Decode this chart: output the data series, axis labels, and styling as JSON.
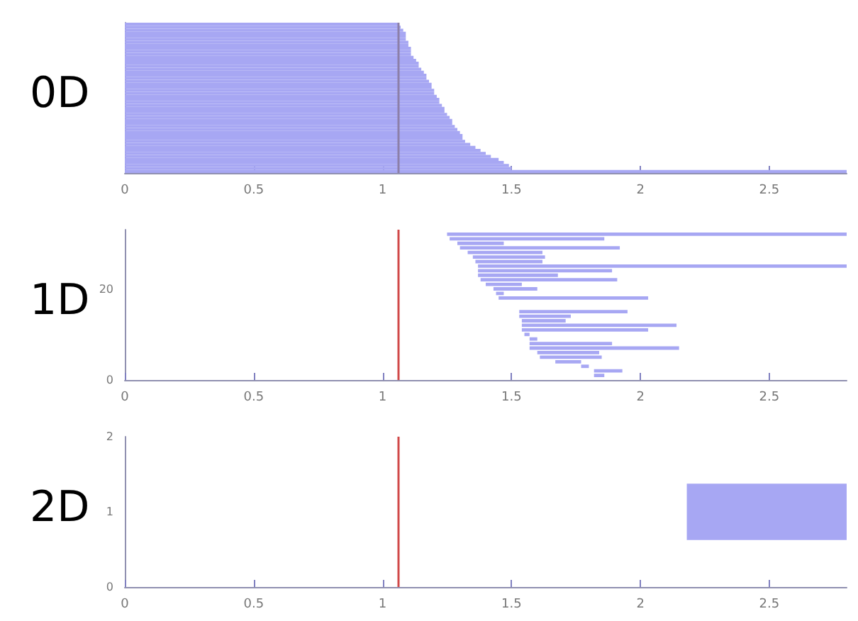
{
  "chart_data": [
    {
      "type": "bar",
      "title": "0D",
      "orientation": "horizontal",
      "tick_labels": "x",
      "grid": false,
      "xlim": [
        0,
        2.8
      ],
      "xticks": [
        0,
        0.5,
        1,
        1.5,
        2,
        2.5
      ],
      "categories": [
        null,
        null,
        null,
        null,
        null,
        null,
        null,
        null,
        null,
        null,
        null,
        null,
        null,
        null,
        null,
        null,
        null,
        null,
        null,
        null,
        null,
        null,
        null,
        null,
        null,
        null,
        null,
        null,
        null,
        null,
        null,
        null,
        null,
        null,
        null,
        null,
        null,
        null,
        null,
        null,
        null,
        null,
        null,
        null,
        null,
        null,
        null,
        null,
        null,
        null
      ],
      "series": [
        {
          "color": "#a7a7f3",
          "values": [
            1.06,
            1.07,
            1.08,
            1.09,
            1.09,
            1.09,
            1.1,
            1.1,
            1.11,
            1.11,
            1.11,
            1.12,
            1.13,
            1.14,
            1.14,
            1.15,
            1.16,
            1.17,
            1.17,
            1.18,
            1.19,
            1.19,
            1.2,
            1.2,
            1.21,
            1.22,
            1.22,
            1.23,
            1.24,
            1.24,
            1.25,
            1.26,
            1.27,
            1.27,
            1.28,
            1.29,
            1.3,
            1.31,
            1.31,
            1.32,
            1.34,
            1.36,
            1.38,
            1.4,
            1.42,
            1.45,
            1.47,
            1.49,
            1.5,
            2.8
          ]
        }
      ],
      "ref_lines": [
        {
          "axis": "x",
          "value": 1.06,
          "color": "#8c7fa8"
        }
      ]
    },
    {
      "type": "bar",
      "title": "1D",
      "orientation": "horizontal",
      "grid": false,
      "xlim": [
        0,
        2.8
      ],
      "xticks": [
        0,
        0.5,
        1,
        1.5,
        2,
        2.5
      ],
      "categories": [
        null,
        null,
        null,
        null,
        null,
        null,
        null,
        null,
        null,
        null,
        null,
        null,
        null,
        "20",
        null,
        null,
        null,
        null,
        null,
        null,
        null,
        null,
        null,
        null,
        null,
        null,
        null,
        null,
        null,
        null,
        null,
        null,
        null,
        "0"
      ],
      "series": [
        {
          "color": "#a7a7f3",
          "base": [
            null,
            1.25,
            1.26,
            1.29,
            1.3,
            1.33,
            1.35,
            1.36,
            1.37,
            1.37,
            1.37,
            1.38,
            1.4,
            1.43,
            1.44,
            1.45,
            null,
            null,
            1.53,
            1.53,
            1.54,
            1.54,
            1.54,
            1.55,
            1.57,
            1.57,
            1.57,
            1.6,
            1.61,
            1.67,
            1.77,
            1.82,
            1.82,
            null
          ],
          "values": [
            null,
            1.55,
            0.6,
            0.18,
            0.62,
            0.29,
            0.28,
            0.26,
            1.43,
            0.52,
            0.31,
            0.53,
            0.14,
            0.17,
            0.03,
            0.58,
            null,
            null,
            0.42,
            0.2,
            0.17,
            0.6,
            0.49,
            0.02,
            0.03,
            0.32,
            0.58,
            0.24,
            0.24,
            0.1,
            0.03,
            0.11,
            0.04,
            null
          ]
        }
      ],
      "ref_lines": [
        {
          "axis": "x",
          "value": 1.06,
          "color": "#d04848"
        }
      ]
    },
    {
      "type": "bar",
      "title": "2D",
      "orientation": "horizontal",
      "grid": false,
      "xlim": [
        0,
        2.8
      ],
      "xticks": [
        0,
        0.5,
        1,
        1.5,
        2,
        2.5
      ],
      "categories": [
        "2",
        "1",
        "0"
      ],
      "series": [
        {
          "color": "#a7a7f3",
          "base": [
            null,
            2.18,
            null
          ],
          "values": [
            null,
            0.62,
            null
          ]
        }
      ],
      "ref_lines": [
        {
          "axis": "x",
          "value": 1.06,
          "color": "#d04848"
        }
      ]
    }
  ]
}
